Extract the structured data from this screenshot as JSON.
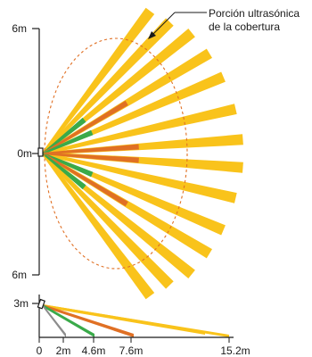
{
  "colors": {
    "yellow": "#F9C31B",
    "orange": "#E07024",
    "green": "#3AAA4A",
    "gray": "#8C8C8C",
    "ultrasonic_outline": "#E07024",
    "axis": "#1a1a1a"
  },
  "top_view": {
    "annotation_line1": "Porción ultrasónica",
    "annotation_line2": "de la cobertura",
    "scale_labels": {
      "top": "6m",
      "middle": "0m",
      "bottom": "6m"
    }
  },
  "side_view": {
    "height_label": "3m",
    "distance_labels": [
      "0",
      "2m",
      "4.6m",
      "7.6m",
      "15.2m"
    ]
  }
}
